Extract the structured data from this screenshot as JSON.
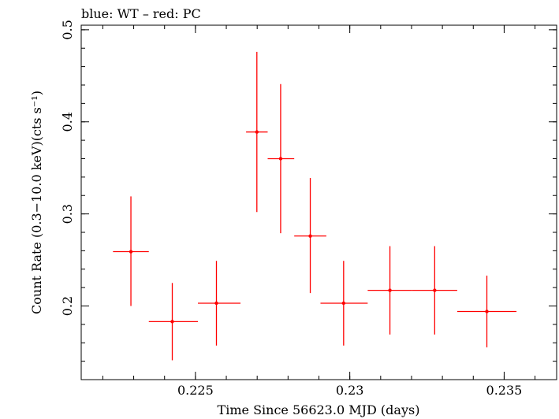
{
  "chart_data": {
    "type": "scatter",
    "title": "blue: WT – red: PC",
    "xlabel": "Time Since 56623.0 MJD (days)",
    "ylabel": "Count Rate (0.3−10.0 keV)(cts s⁻¹)",
    "xlim": [
      0.2213,
      0.2367
    ],
    "ylim": [
      0.12,
      0.505
    ],
    "x_ticks": [
      {
        "value": 0.225,
        "label": "0.225"
      },
      {
        "value": 0.23,
        "label": "0.23"
      },
      {
        "value": 0.235,
        "label": "0.235"
      }
    ],
    "y_ticks": [
      {
        "value": 0.2,
        "label": "0.2"
      },
      {
        "value": 0.3,
        "label": "0.3"
      },
      {
        "value": 0.4,
        "label": "0.4"
      },
      {
        "value": 0.5,
        "label": "0.5"
      }
    ],
    "x_minor_step": 0.001,
    "y_minor_step": 0.02,
    "series": [
      {
        "name": "PC",
        "color": "#ff0000",
        "points": [
          {
            "x": 0.22291,
            "y": 0.259,
            "xlo": 0.22233,
            "xhi": 0.22349,
            "ylo": 0.2,
            "yhi": 0.319
          },
          {
            "x": 0.22425,
            "y": 0.183,
            "xlo": 0.22349,
            "xhi": 0.22508,
            "ylo": 0.141,
            "yhi": 0.225
          },
          {
            "x": 0.22568,
            "y": 0.203,
            "xlo": 0.22508,
            "xhi": 0.22646,
            "ylo": 0.157,
            "yhi": 0.249
          },
          {
            "x": 0.22699,
            "y": 0.389,
            "xlo": 0.22664,
            "xhi": 0.22734,
            "ylo": 0.302,
            "yhi": 0.476
          },
          {
            "x": 0.22776,
            "y": 0.36,
            "xlo": 0.22734,
            "xhi": 0.2282,
            "ylo": 0.279,
            "yhi": 0.441
          },
          {
            "x": 0.22872,
            "y": 0.276,
            "xlo": 0.2282,
            "xhi": 0.22924,
            "ylo": 0.214,
            "yhi": 0.339
          },
          {
            "x": 0.2298,
            "y": 0.203,
            "xlo": 0.22905,
            "xhi": 0.23058,
            "ylo": 0.157,
            "yhi": 0.249
          },
          {
            "x": 0.2313,
            "y": 0.217,
            "xlo": 0.23058,
            "xhi": 0.23202,
            "ylo": 0.169,
            "yhi": 0.265
          },
          {
            "x": 0.23275,
            "y": 0.217,
            "xlo": 0.23202,
            "xhi": 0.23348,
            "ylo": 0.169,
            "yhi": 0.265
          },
          {
            "x": 0.23444,
            "y": 0.194,
            "xlo": 0.23348,
            "xhi": 0.2354,
            "ylo": 0.155,
            "yhi": 0.233
          }
        ]
      }
    ]
  }
}
